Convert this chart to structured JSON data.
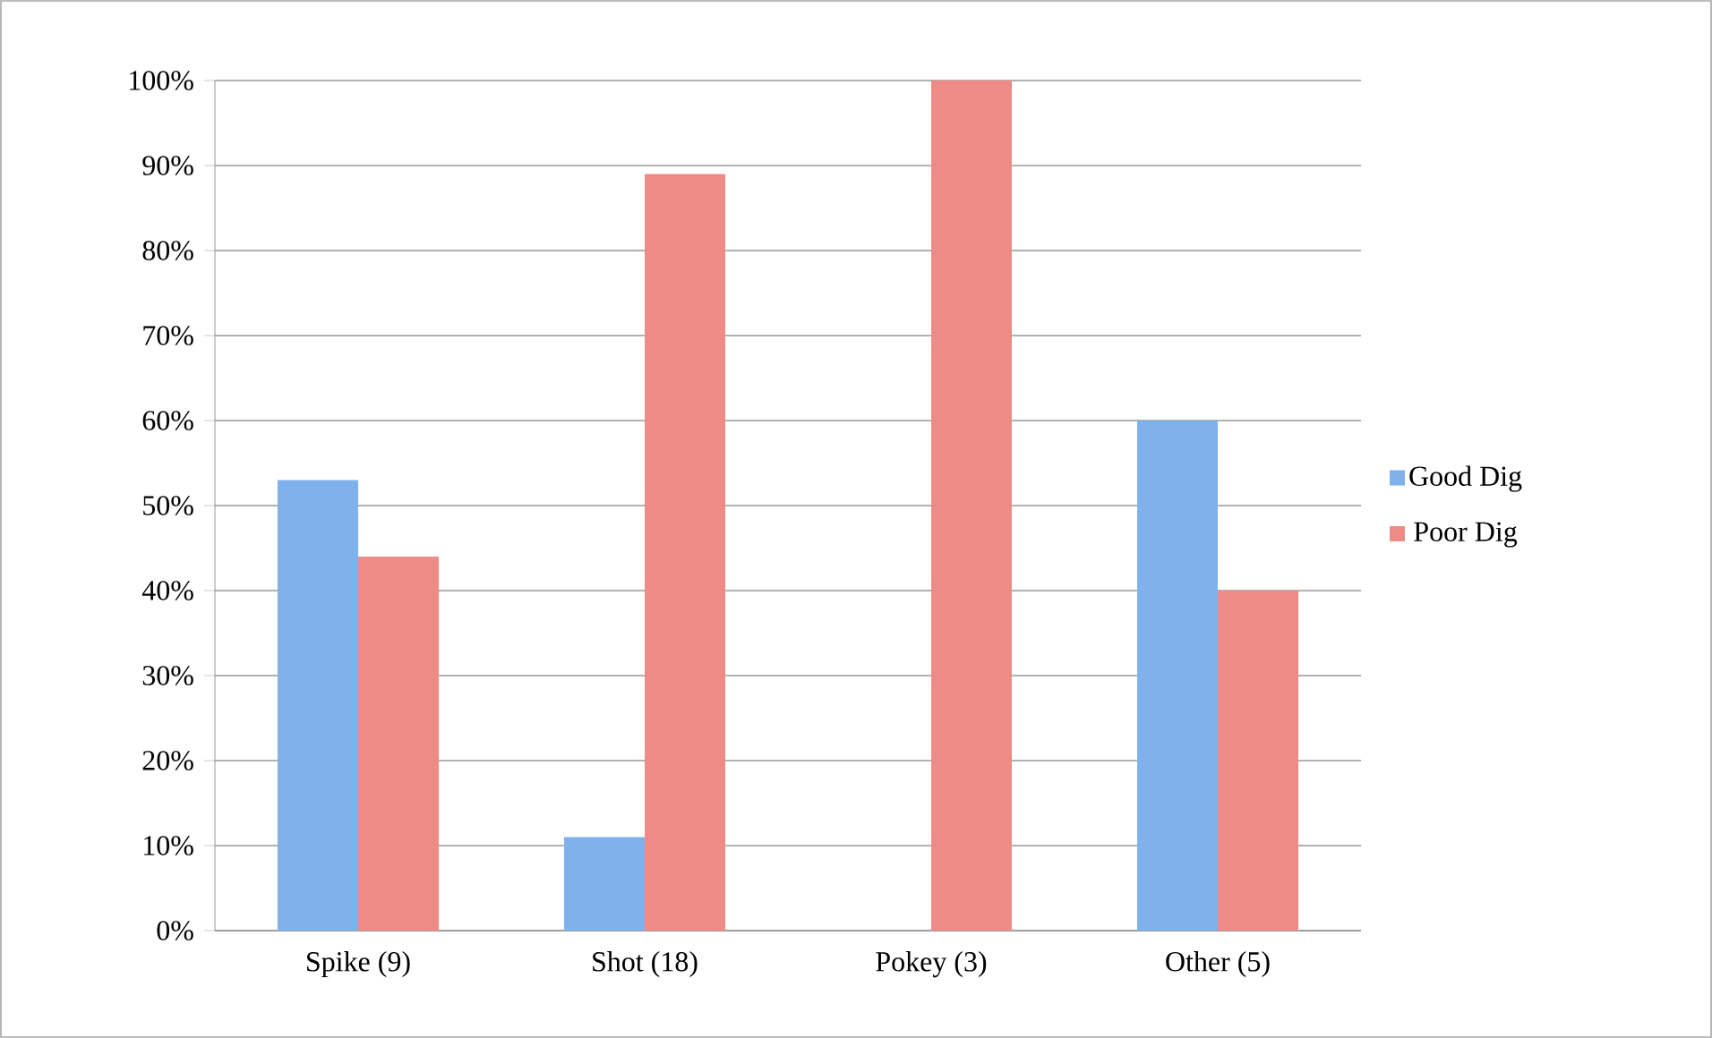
{
  "chart_data": {
    "type": "bar",
    "categories": [
      "Spike (9)",
      "Shot (18)",
      "Pokey (3)",
      "Other (5)"
    ],
    "series": [
      {
        "name": "Good Dig",
        "color": "#7fb1ec",
        "values": [
          53,
          11,
          0,
          60
        ]
      },
      {
        "name": "Poor Dig",
        "color": "#ef8b87",
        "values": [
          44,
          89,
          100,
          40
        ]
      }
    ],
    "ylim": [
      0,
      100
    ],
    "yticks": [
      {
        "value": 0,
        "label": "0%"
      },
      {
        "value": 10,
        "label": "10%"
      },
      {
        "value": 20,
        "label": "20%"
      },
      {
        "value": 30,
        "label": "30%"
      },
      {
        "value": 40,
        "label": "40%"
      },
      {
        "value": 50,
        "label": "50%"
      },
      {
        "value": 60,
        "label": "60%"
      },
      {
        "value": 70,
        "label": "70%"
      },
      {
        "value": 80,
        "label": "80%"
      },
      {
        "value": 90,
        "label": "90%"
      },
      {
        "value": 100,
        "label": "100%"
      }
    ],
    "grid": "y",
    "legend": "right"
  }
}
